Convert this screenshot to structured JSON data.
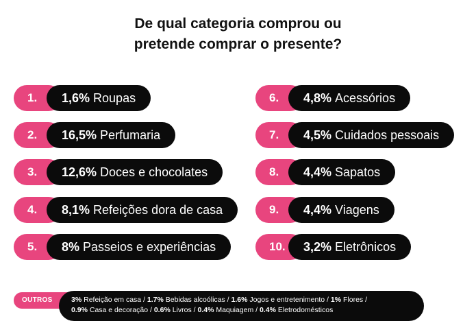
{
  "title": {
    "line1": "De qual categoria comprou ou",
    "line2": "pretende comprar o presente?"
  },
  "colors": {
    "accent": "#e8457e",
    "pill": "#0b0b0b"
  },
  "chart_data": {
    "type": "table",
    "title": "De qual categoria comprou ou pretende comprar o presente?",
    "items": [
      {
        "rank": "1.",
        "value": "1,6%",
        "label": "Roupas"
      },
      {
        "rank": "2.",
        "value": "16,5%",
        "label": "Perfumaria"
      },
      {
        "rank": "3.",
        "value": "12,6%",
        "label": "Doces e chocolates"
      },
      {
        "rank": "4.",
        "value": "8,1%",
        "label": "Refeições dora de casa"
      },
      {
        "rank": "5.",
        "value": "8%",
        "label": "Passeios e experiências"
      },
      {
        "rank": "6.",
        "value": "4,8%",
        "label": "Acessórios"
      },
      {
        "rank": "7.",
        "value": "4,5%",
        "label": "Cuidados pessoais"
      },
      {
        "rank": "8.",
        "value": "4,4%",
        "label": "Sapatos"
      },
      {
        "rank": "9.",
        "value": "4,4%",
        "label": "Viagens"
      },
      {
        "rank": "10.",
        "value": "3,2%",
        "label": "Eletrônicos"
      }
    ],
    "others": {
      "label": "OUTROS",
      "lines": [
        [
          {
            "value": "3%",
            "label": "Refeição em casa"
          },
          {
            "value": "1.7%",
            "label": "Bebidas alcoólicas"
          },
          {
            "value": "1.6%",
            "label": "Jogos e entretenimento"
          },
          {
            "value": "1%",
            "label": "Flores"
          }
        ],
        [
          {
            "value": "0.9%",
            "label": "Casa e decoração"
          },
          {
            "value": "0.6%",
            "label": "Livros"
          },
          {
            "value": "0.4%",
            "label": "Maquiagem"
          },
          {
            "value": "0.4%",
            "label": "Eletrodomésticos"
          }
        ]
      ]
    }
  }
}
